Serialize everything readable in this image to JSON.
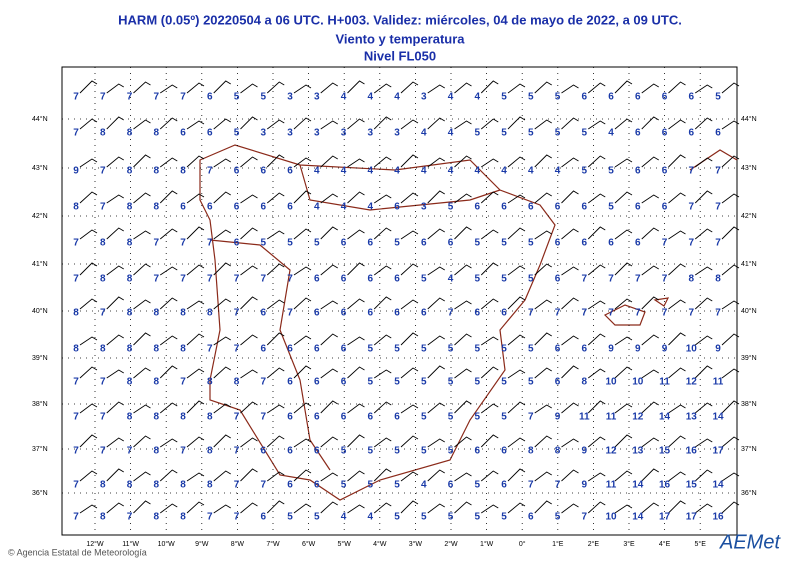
{
  "header": {
    "lines": [
      "HARM (0.05º) 20220504 a 06 UTC.  H+003. Validez: miércoles, 04 de mayo de 2022,  a  09 UTC.",
      "Viento y temperatura",
      "Nivel FL050"
    ]
  },
  "grid": {
    "rows": [
      [
        7,
        7,
        7,
        7,
        7,
        6,
        5,
        5,
        3,
        3,
        4,
        4,
        4,
        3,
        4,
        4,
        5,
        5,
        5,
        6,
        6,
        6,
        6,
        6,
        5
      ],
      [
        7,
        8,
        8,
        8,
        6,
        6,
        5,
        3,
        3,
        3,
        3,
        3,
        3,
        4,
        4,
        5,
        5,
        5,
        5,
        5,
        4,
        6,
        6,
        6,
        6
      ],
      [
        9,
        7,
        8,
        8,
        8,
        7,
        6,
        6,
        6,
        4,
        4,
        4,
        4,
        4,
        4,
        4,
        4,
        4,
        4,
        5,
        5,
        6,
        6,
        7,
        7
      ],
      [
        8,
        7,
        8,
        8,
        6,
        6,
        6,
        6,
        6,
        4,
        4,
        4,
        6,
        3,
        5,
        6,
        6,
        6,
        6,
        6,
        5,
        6,
        6,
        7,
        7
      ],
      [
        7,
        8,
        8,
        7,
        7,
        7,
        6,
        5,
        5,
        5,
        6,
        6,
        5,
        6,
        6,
        5,
        5,
        5,
        6,
        6,
        6,
        6,
        7,
        7,
        7
      ],
      [
        7,
        8,
        8,
        7,
        7,
        7,
        7,
        7,
        7,
        6,
        6,
        6,
        6,
        5,
        4,
        5,
        5,
        5,
        6,
        7,
        7,
        7,
        7,
        8,
        8
      ],
      [
        8,
        7,
        8,
        8,
        8,
        8,
        7,
        6,
        7,
        6,
        6,
        6,
        6,
        6,
        7,
        6,
        6,
        7,
        7,
        7,
        7,
        7,
        7,
        7,
        7
      ],
      [
        8,
        8,
        8,
        8,
        8,
        7,
        7,
        6,
        6,
        6,
        6,
        5,
        5,
        5,
        5,
        5,
        5,
        5,
        6,
        6,
        9,
        9,
        9,
        10,
        9
      ],
      [
        7,
        7,
        8,
        8,
        7,
        8,
        8,
        7,
        6,
        6,
        6,
        5,
        5,
        5,
        5,
        5,
        5,
        5,
        6,
        8,
        10,
        10,
        11,
        12,
        11
      ],
      [
        7,
        7,
        8,
        8,
        8,
        8,
        7,
        7,
        6,
        6,
        6,
        6,
        6,
        5,
        5,
        5,
        5,
        7,
        9,
        11,
        11,
        12,
        14,
        13,
        14
      ],
      [
        7,
        7,
        7,
        8,
        7,
        8,
        7,
        6,
        6,
        6,
        5,
        5,
        5,
        5,
        5,
        6,
        6,
        8,
        8,
        9,
        12,
        13,
        15,
        16,
        17
      ],
      [
        7,
        8,
        8,
        8,
        8,
        8,
        7,
        7,
        6,
        6,
        5,
        5,
        5,
        4,
        6,
        5,
        6,
        7,
        7,
        9,
        11,
        14,
        16,
        15,
        14
      ],
      [
        7,
        8,
        7,
        8,
        8,
        7,
        7,
        6,
        5,
        5,
        4,
        4,
        5,
        5,
        5,
        5,
        5,
        6,
        5,
        7,
        10,
        14,
        17,
        17,
        16
      ]
    ]
  },
  "axes": {
    "lat": [
      "44°N",
      "43°N",
      "42°N",
      "41°N",
      "40°N",
      "39°N",
      "38°N",
      "37°N",
      "36°N"
    ],
    "lon": [
      "12°W",
      "11°W",
      "10°W",
      "9°W",
      "8°W",
      "7°W",
      "6°W",
      "5°W",
      "4°W",
      "3°W",
      "2°W",
      "1°W",
      "0°",
      "1°E",
      "2°E",
      "3°E",
      "4°E",
      "5°E"
    ]
  },
  "footer": "© Agencia Estatal de Meteorología",
  "logo": "AEMet"
}
